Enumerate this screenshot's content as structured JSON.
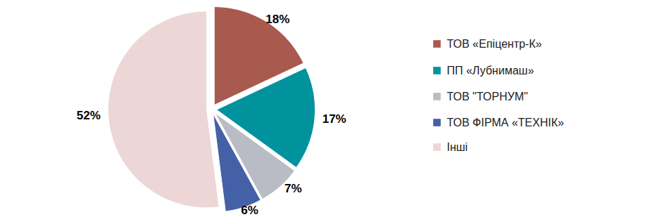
{
  "chart_data": {
    "type": "pie",
    "categories": [
      "ТОВ «Епіцентр-К»",
      "ПП «Лубнимаш»",
      "ТОВ \"ТОРНУМ\"",
      "ТОВ ФІРМА «ТЕХНІК»",
      "Інші"
    ],
    "values": [
      18,
      17,
      7,
      6,
      52
    ],
    "value_labels": [
      "18%",
      "17%",
      "7%",
      "6%",
      "52%"
    ],
    "colors": [
      "#a85a4e",
      "#00939e",
      "#b9bcc4",
      "#4460a6",
      "#ecd6d6"
    ],
    "data_labels": true,
    "legend": "right"
  }
}
